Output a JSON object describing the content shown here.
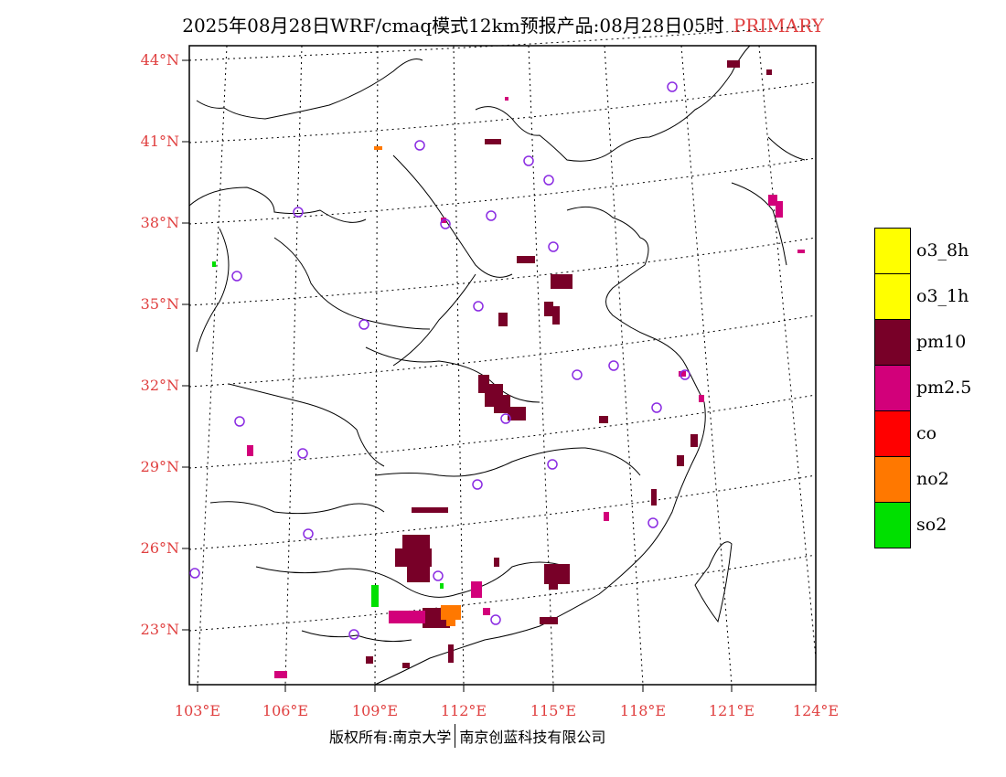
{
  "title": {
    "main": "2025年08月28日WRF/cmaq模式12km预报产品:08月28日05时",
    "tag": "PRIMARY"
  },
  "colors": {
    "label_red": "#e04040",
    "o3_8h": "#ffff00",
    "o3_1h": "#ffff00",
    "pm10": "#780028",
    "pm25": "#d2007a",
    "co": "#ff0000",
    "no2": "#ff7800",
    "so2": "#00e000",
    "station": "#8a2be2"
  },
  "map": {
    "lat_labels": [
      "44°N",
      "41°N",
      "38°N",
      "35°N",
      "32°N",
      "29°N",
      "26°N",
      "23°N"
    ],
    "lon_labels": [
      "103°E",
      "106°E",
      "109°E",
      "112°E",
      "115°E",
      "118°E",
      "121°E",
      "124°E"
    ]
  },
  "legend": [
    {
      "label": "o3_8h",
      "color": "#ffff00"
    },
    {
      "label": "o3_1h",
      "color": "#ffff00"
    },
    {
      "label": "pm10",
      "color": "#780028"
    },
    {
      "label": "pm2.5",
      "color": "#d2007a"
    },
    {
      "label": "co",
      "color": "#ff0000"
    },
    {
      "label": "no2",
      "color": "#ff7800"
    },
    {
      "label": "so2",
      "color": "#00e000"
    }
  ],
  "footer": {
    "left": "版权所有:南京大学",
    "right": "南京创蓝科技有限公司"
  }
}
